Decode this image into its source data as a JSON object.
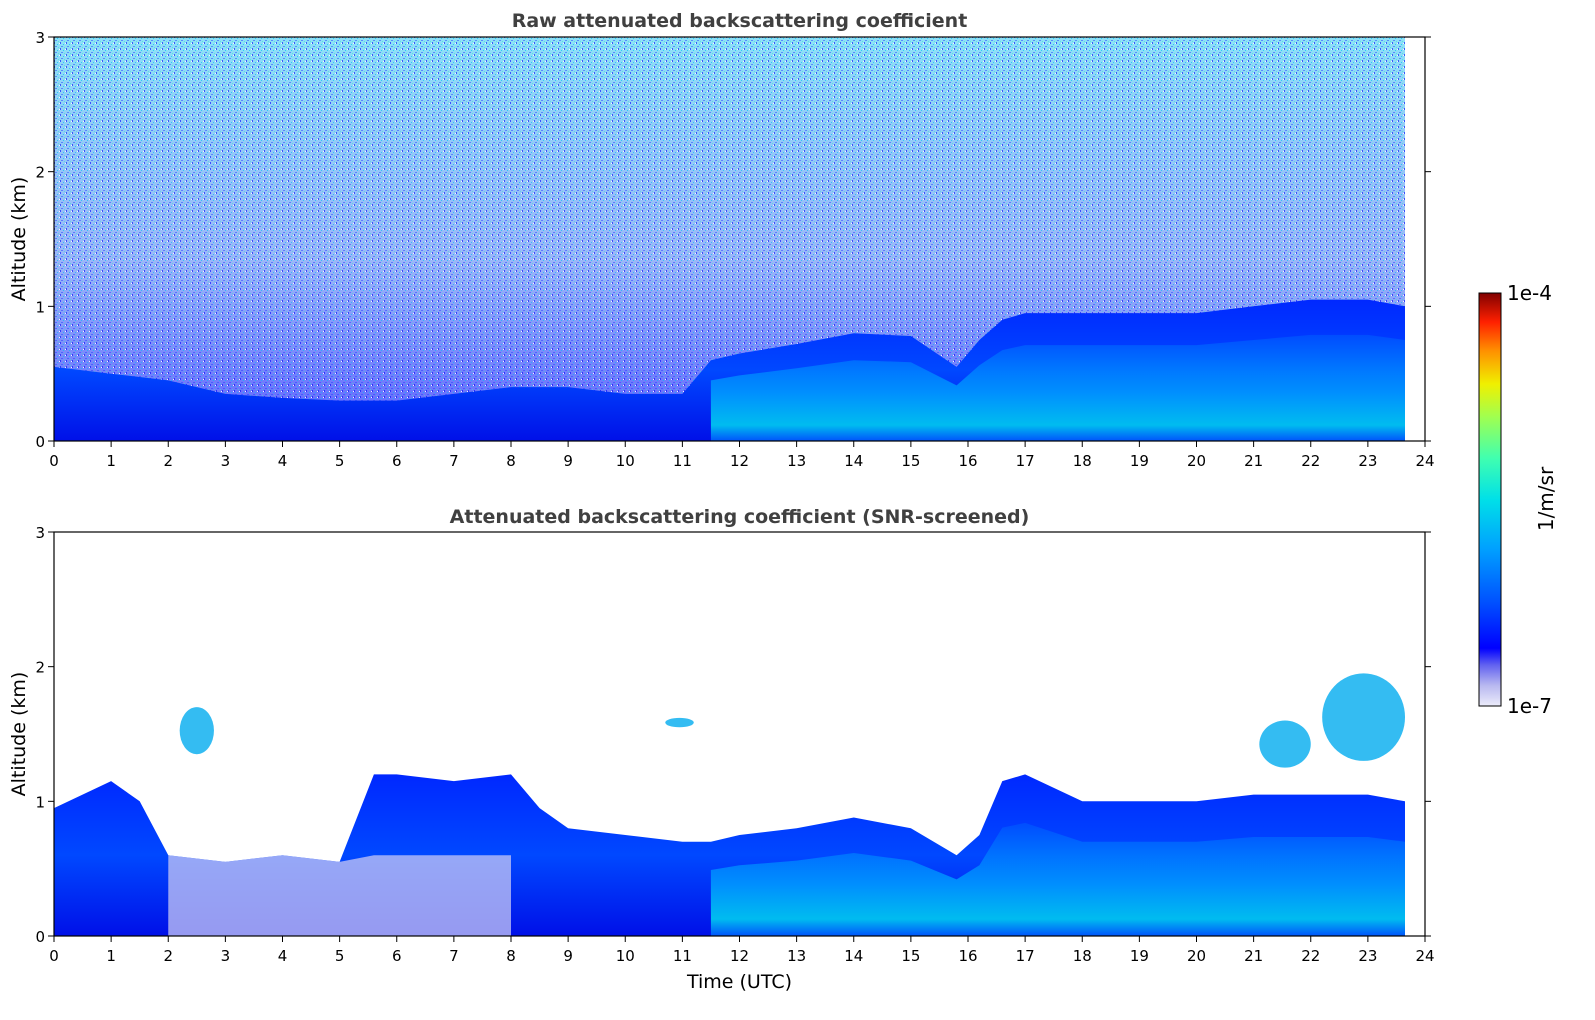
{
  "chart_data": [
    {
      "type": "heatmap",
      "title": "Raw attenuated backscattering coefficient",
      "xlabel": "",
      "ylabel": "Altitude (km)",
      "xlim": [
        0,
        24
      ],
      "ylim": [
        0,
        3
      ],
      "xticks": [
        "0",
        "1",
        "2",
        "3",
        "4",
        "5",
        "6",
        "7",
        "8",
        "9",
        "10",
        "11",
        "12",
        "13",
        "14",
        "15",
        "16",
        "17",
        "18",
        "19",
        "20",
        "21",
        "22",
        "23",
        "24"
      ],
      "yticks": [
        "0",
        "1",
        "2",
        "3"
      ],
      "data_end_hour": 23.65,
      "features": {
        "boundary_layer_top_km": [
          [
            0,
            0.55
          ],
          [
            1,
            0.5
          ],
          [
            2,
            0.45
          ],
          [
            3,
            0.35
          ],
          [
            4,
            0.32
          ],
          [
            5,
            0.3
          ],
          [
            6,
            0.3
          ],
          [
            7,
            0.35
          ],
          [
            8,
            0.4
          ],
          [
            8.5,
            0.4
          ],
          [
            9,
            0.4
          ],
          [
            10,
            0.35
          ],
          [
            11,
            0.35
          ],
          [
            11.5,
            0.6
          ],
          [
            12,
            0.65
          ],
          [
            13,
            0.72
          ],
          [
            14,
            0.8
          ],
          [
            15,
            0.78
          ],
          [
            15.8,
            0.55
          ],
          [
            16.2,
            0.75
          ],
          [
            16.6,
            0.9
          ],
          [
            17,
            0.95
          ],
          [
            18,
            0.95
          ],
          [
            19,
            0.95
          ],
          [
            20,
            0.95
          ],
          [
            21,
            1.0
          ],
          [
            22,
            1.05
          ],
          [
            23,
            1.05
          ],
          [
            23.65,
            1.0
          ]
        ],
        "noise_level": "high above 0.5 km"
      }
    },
    {
      "type": "heatmap",
      "title": "Attenuated backscattering coefficient (SNR-screened)",
      "xlabel": "Time (UTC)",
      "ylabel": "Altitude (km)",
      "xlim": [
        0,
        24
      ],
      "ylim": [
        0,
        3
      ],
      "xticks": [
        "0",
        "1",
        "2",
        "3",
        "4",
        "5",
        "6",
        "7",
        "8",
        "9",
        "10",
        "11",
        "12",
        "13",
        "14",
        "15",
        "16",
        "17",
        "18",
        "19",
        "20",
        "21",
        "22",
        "23",
        "24"
      ],
      "yticks": [
        "0",
        "1",
        "2",
        "3"
      ],
      "data_end_hour": 23.65,
      "features": {
        "aerosol_layer_top_km": [
          [
            0,
            0.95
          ],
          [
            1,
            1.15
          ],
          [
            1.5,
            1.0
          ],
          [
            2,
            0.6
          ],
          [
            3,
            0.55
          ],
          [
            4,
            0.6
          ],
          [
            5,
            0.55
          ],
          [
            5.6,
            1.2
          ],
          [
            6,
            1.2
          ],
          [
            7,
            1.15
          ],
          [
            8,
            1.2
          ],
          [
            8.5,
            0.95
          ],
          [
            9,
            0.8
          ],
          [
            10,
            0.75
          ],
          [
            11,
            0.7
          ],
          [
            11.5,
            0.7
          ],
          [
            12,
            0.75
          ],
          [
            13,
            0.8
          ],
          [
            14,
            0.88
          ],
          [
            15,
            0.8
          ],
          [
            15.8,
            0.6
          ],
          [
            16.2,
            0.75
          ],
          [
            16.6,
            1.15
          ],
          [
            17,
            1.2
          ],
          [
            18,
            1.0
          ],
          [
            19,
            1.0
          ],
          [
            20,
            1.0
          ],
          [
            21,
            1.05
          ],
          [
            22,
            1.05
          ],
          [
            23,
            1.05
          ],
          [
            23.65,
            1.0
          ]
        ],
        "elevated_layers": [
          {
            "hours": [
              21.1,
              22.0
            ],
            "altitude_km": [
              1.25,
              1.6
            ]
          },
          {
            "hours": [
              22.2,
              23.65
            ],
            "altitude_km": [
              1.3,
              1.95
            ]
          },
          {
            "hours": [
              2.2,
              2.8
            ],
            "altitude_km": [
              1.35,
              1.7
            ]
          },
          {
            "hours": [
              10.7,
              11.2
            ],
            "altitude_km": [
              1.55,
              1.62
            ]
          }
        ]
      }
    }
  ],
  "colorbar": {
    "label": "1/m/sr",
    "min_label": "1e-7",
    "max_label": "1e-4",
    "colors": [
      "#e8e8f8",
      "#c0c0f0",
      "#9090e8",
      "#0000ff",
      "#0030ff",
      "#0070ff",
      "#00a8ff",
      "#00d8f0",
      "#30ffc0",
      "#90ff60",
      "#e0ff00",
      "#ffd000",
      "#ff8000",
      "#ff2000",
      "#c00000",
      "#800000"
    ]
  }
}
